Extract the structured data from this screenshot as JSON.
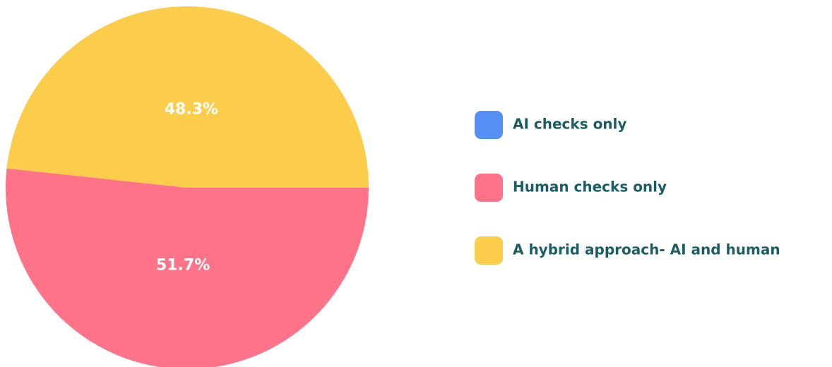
{
  "chart_data": {
    "type": "pie",
    "categories": [
      "AI checks only",
      "Human checks only",
      "A hybrid approach- AI and human"
    ],
    "values": [
      0,
      51.7,
      48.3
    ],
    "value_labels": [
      null,
      "51.7%",
      "48.3%"
    ],
    "colors": [
      "#5591f5",
      "#ff7389",
      "#fbcd4b"
    ],
    "legend": "right"
  }
}
